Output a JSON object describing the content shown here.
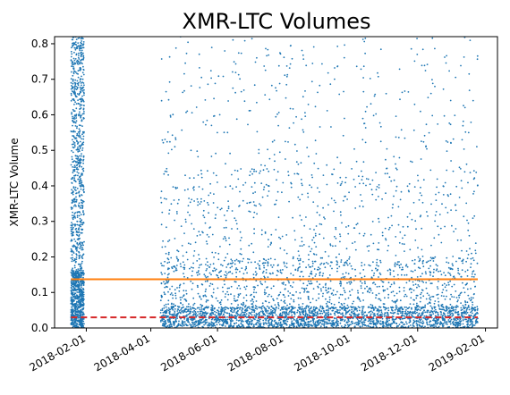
{
  "chart_data": {
    "type": "scatter",
    "title": "XMR-LTC Volumes",
    "xlabel": "",
    "ylabel": "XMR-LTC Volume",
    "xlim": [
      "2018-01-03",
      "2019-02-12"
    ],
    "ylim": [
      0.0,
      0.82
    ],
    "x_ticks": [
      "2018-02-01",
      "2018-04-01",
      "2018-06-01",
      "2018-08-01",
      "2018-10-01",
      "2018-12-01",
      "2019-02-01"
    ],
    "y_ticks": [
      0.0,
      0.1,
      0.2,
      0.3,
      0.4,
      0.5,
      0.6,
      0.7,
      0.8
    ],
    "grid": false,
    "series": [
      {
        "kind": "scatter",
        "color": "#1f77b4",
        "clusters": [
          {
            "x_start": "2018-01-18",
            "x_end": "2018-01-30",
            "y_max": 0.82
          },
          {
            "x_start": "2018-04-10",
            "x_end": "2019-01-25",
            "y_max": 0.82
          }
        ]
      },
      {
        "kind": "hline",
        "value": 0.137,
        "color": "#ff7f0e",
        "style": "solid",
        "x_start": "2018-01-18",
        "x_end": "2019-01-25"
      },
      {
        "kind": "hline",
        "value": 0.03,
        "color": "#d62728",
        "style": "dashed",
        "x_start": "2018-01-18",
        "x_end": "2019-01-25"
      }
    ]
  }
}
